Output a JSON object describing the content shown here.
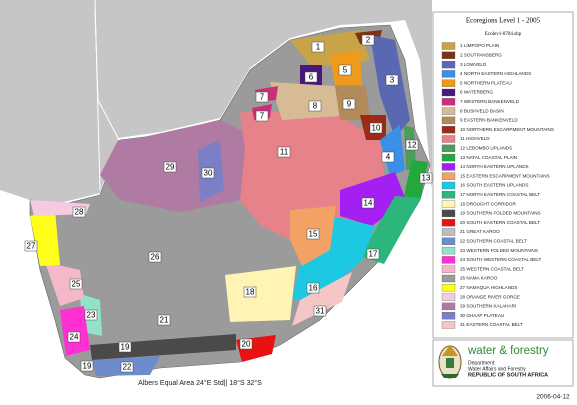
{
  "title": "Ecoregions Level 1 - 2005",
  "subtitle": "Ecolev1-0704.shp",
  "legend": [
    {
      "label": "1 LIMPOPO PLAIN",
      "color": "#c9a347"
    },
    {
      "label": "2 SOUTPANSBERG",
      "color": "#7a3415"
    },
    {
      "label": "3 LOWVELD",
      "color": "#5a68b3"
    },
    {
      "label": "4 NORTH EASTERN HIGHLANDS",
      "color": "#3a8fe6"
    },
    {
      "label": "5 NORTHERN PLATEAU",
      "color": "#ee9b1c"
    },
    {
      "label": "6 WATERBERG",
      "color": "#4a177a"
    },
    {
      "label": "7 WESTERN BANKENVELD",
      "color": "#c8307c"
    },
    {
      "label": "8 BUSHVELD BASIN",
      "color": "#d6bb95"
    },
    {
      "label": "9 EASTERN BANKENVELD",
      "color": "#b38a5a"
    },
    {
      "label": "10 NORTHERN ESCARPMENT MOUNTAINS",
      "color": "#9c2a17"
    },
    {
      "label": "11 HIGHVELD",
      "color": "#e8828a"
    },
    {
      "label": "12 LEBOMBO UPLANDS",
      "color": "#4a9e5a"
    },
    {
      "label": "13 NATAL COASTAL PLAIN",
      "color": "#22a83c"
    },
    {
      "label": "14 NORTH EASTERN UPLANDS",
      "color": "#a31ff2"
    },
    {
      "label": "15 EASTERN ESCARPMENT MOUNTAINS",
      "color": "#f2a264"
    },
    {
      "label": "16 SOUTH EASTERN UPLANDS",
      "color": "#1dc9e2"
    },
    {
      "label": "17 NORTH EASTERN COASTAL BELT",
      "color": "#2cb67c"
    },
    {
      "label": "18 DROUGHT CORRIDOR",
      "color": "#fff4b4"
    },
    {
      "label": "19 SOUTHERN FOLDED MOUNTAINS",
      "color": "#4a4a4a"
    },
    {
      "label": "20 SOUTH EASTERN COASTAL BELT",
      "color": "#e81212"
    },
    {
      "label": "21 GREAT KAROO",
      "color": "#bdbdbd"
    },
    {
      "label": "22 SOUTHERN COASTAL BELT",
      "color": "#6c8ccb"
    },
    {
      "label": "23 WESTERN FOLDED MOUNTAINS",
      "color": "#92e2c9"
    },
    {
      "label": "24 SOUTH WESTERN COASTAL BELT",
      "color": "#ff30d2"
    },
    {
      "label": "25 WESTERN COASTAL BELT",
      "color": "#f3b9c9"
    },
    {
      "label": "26 NAMA KAROO",
      "color": "#9b9b9b"
    },
    {
      "label": "27 NAMAQUA HIGHLANDS",
      "color": "#ffff1a"
    },
    {
      "label": "28 ORANGE RIVER GORGE",
      "color": "#f6cbe1"
    },
    {
      "label": "29 SOUTHERN KALAHARI",
      "color": "#b07ba2"
    },
    {
      "label": "30 GHAAP PLATEAU",
      "color": "#7b7fc6"
    },
    {
      "label": "31 EASTERN COASTAL BELT",
      "color": "#f4c6c6"
    }
  ],
  "map_labels": [
    "1",
    "2",
    "3",
    "4",
    "5",
    "6",
    "7",
    "7",
    "8",
    "9",
    "10",
    "11",
    "12",
    "13",
    "14",
    "15",
    "16",
    "17",
    "18",
    "19",
    "19",
    "20",
    "21",
    "22",
    "23",
    "24",
    "25",
    "26",
    "27",
    "28",
    "29",
    "30",
    "31"
  ],
  "projection": "Albers Equal Area 24°E Std|| 18°S 32°S",
  "logo": {
    "name": "water & forestry",
    "lines": [
      "Department:",
      "Water Affairs and Forestry",
      "REPUBLIC OF SOUTH AFRICA"
    ]
  },
  "date": "2006-04-12"
}
